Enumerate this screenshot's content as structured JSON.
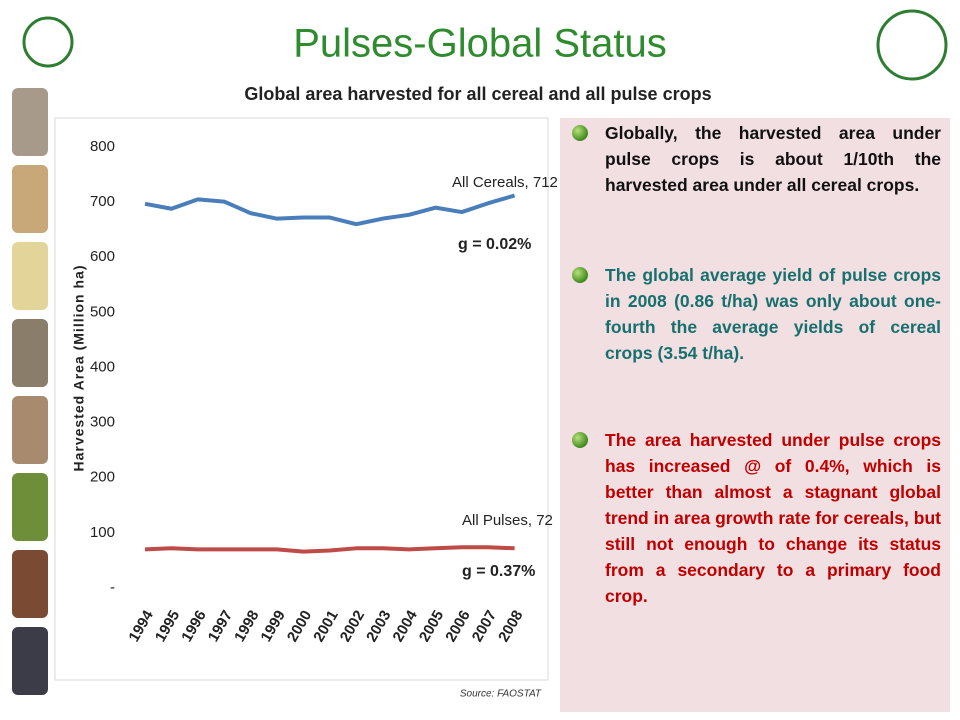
{
  "title": "Pulses-Global Status",
  "chart_data": {
    "type": "line",
    "title": "Global area harvested for all cereal and all pulse crops",
    "y_label": "Harvested Area (Million ha)",
    "categories": [
      "1994",
      "1995",
      "1996",
      "1997",
      "1998",
      "1999",
      "2000",
      "2001",
      "2002",
      "2003",
      "2004",
      "2005",
      "2006",
      "2007",
      "2008"
    ],
    "series": [
      {
        "name": "All Cereals",
        "color": "#4a7ebb",
        "values": [
          697,
          688,
          705,
          701,
          680,
          670,
          672,
          672,
          660,
          670,
          677,
          690,
          682,
          698,
          712
        ]
      },
      {
        "name": "All Pulses",
        "color": "#be4b48",
        "values": [
          70,
          72,
          70,
          70,
          70,
          70,
          66,
          68,
          72,
          72,
          70,
          72,
          74,
          74,
          72
        ]
      }
    ],
    "ylim": [
      0,
      800
    ],
    "yticks": [
      {
        "value": 0,
        "label": "-"
      },
      100,
      200,
      300,
      400,
      500,
      600,
      700,
      800
    ],
    "annotations": [
      "All Cereals, 712",
      "g = 0.02%",
      "All Pulses, 72",
      "g = 0.37%"
    ],
    "source": "Source: FAOSTAT"
  },
  "bullets": [
    {
      "text": "Globally, the harvested area under pulse crops is about 1/10th  the harvested area under all cereal crops.",
      "color": "#111111"
    },
    {
      "text": "The global average yield of pulse crops in 2008 (0.86 t/ha) was only about one-fourth the average yields of cereal crops (3.54 t/ha).",
      "color": "#17706e"
    },
    {
      "text": "The area harvested under pulse crops has increased @ of 0.4%, which is better than almost a stagnant global trend in area growth rate for cereals, but still not enough to change its status from a secondary to a primary food crop.",
      "color": "#c00000"
    }
  ]
}
